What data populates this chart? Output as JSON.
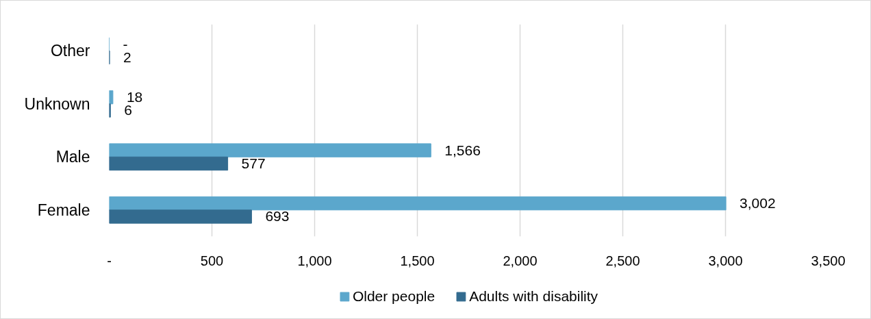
{
  "chart_data": {
    "type": "bar",
    "orientation": "horizontal",
    "categories": [
      "Other",
      "Unknown",
      "Male",
      "Female"
    ],
    "series": [
      {
        "name": "Older people",
        "color": "#5ba7cc",
        "values": [
          0,
          18,
          1566,
          3002
        ],
        "value_labels": [
          "-",
          "18",
          "1,566",
          "3,002"
        ]
      },
      {
        "name": "Adults with disability",
        "color": "#336b8f",
        "values": [
          2,
          6,
          577,
          693
        ],
        "value_labels": [
          "2",
          "6",
          "577",
          "693"
        ]
      }
    ],
    "xlim": [
      0,
      3500
    ],
    "xticks": [
      {
        "value": 0,
        "label": "-"
      },
      500,
      {
        "value": 1000,
        "label": "1,000"
      },
      {
        "value": 1500,
        "label": "1,500"
      },
      {
        "value": 2000,
        "label": "2,000"
      },
      {
        "value": 2500,
        "label": "2,500"
      },
      {
        "value": 3000,
        "label": "3,000"
      },
      {
        "value": 3500,
        "label": "3,500"
      }
    ],
    "grid": "x",
    "legend": "bottom"
  }
}
